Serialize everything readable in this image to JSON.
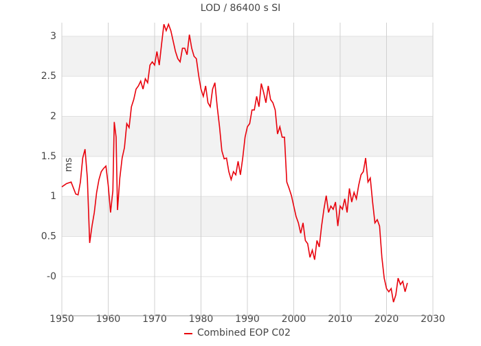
{
  "chart_data": {
    "type": "line",
    "title": "LOD / 86400 s SI",
    "ylabel": "ms",
    "x": [
      1950,
      1951,
      1952,
      1953,
      1953.5,
      1954,
      1954.5,
      1955,
      1955.5,
      1956,
      1956.5,
      1957,
      1957.5,
      1958,
      1958.5,
      1959,
      1959.5,
      1960,
      1960.5,
      1961,
      1961.3,
      1961.7,
      1962,
      1962.5,
      1963,
      1963.5,
      1964,
      1964.5,
      1965,
      1965.5,
      1966,
      1966.5,
      1967,
      1967.5,
      1968,
      1968.5,
      1969,
      1969.5,
      1970,
      1970.5,
      1971,
      1971.5,
      1972,
      1972.5,
      1973,
      1973.5,
      1974,
      1974.5,
      1975,
      1975.5,
      1976,
      1976.5,
      1977,
      1977.5,
      1978,
      1978.5,
      1979,
      1979.5,
      1980,
      1980.5,
      1981,
      1981.5,
      1982,
      1982.5,
      1983,
      1983.5,
      1984,
      1984.5,
      1985,
      1985.5,
      1986,
      1986.5,
      1987,
      1987.5,
      1988,
      1988.5,
      1989,
      1989.5,
      1990,
      1990.5,
      1991,
      1991.5,
      1992,
      1992.5,
      1993,
      1993.5,
      1994,
      1994.5,
      1995,
      1995.5,
      1996,
      1996.5,
      1997,
      1997.5,
      1998,
      1998.5,
      1999,
      1999.5,
      2000,
      2000.5,
      2001,
      2001.5,
      2002,
      2002.5,
      2003,
      2003.5,
      2004,
      2004.5,
      2005,
      2005.5,
      2006,
      2006.5,
      2007,
      2007.5,
      2008,
      2008.5,
      2009,
      2009.5,
      2010,
      2010.5,
      2011,
      2011.5,
      2012,
      2012.5,
      2013,
      2013.5,
      2014,
      2014.5,
      2015,
      2015.5,
      2016,
      2016.5,
      2017,
      2017.5,
      2018,
      2018.5,
      2019,
      2019.5,
      2020,
      2020.5,
      2021,
      2021.5,
      2022,
      2022.5,
      2023,
      2023.5,
      2024,
      2024.5
    ],
    "series": [
      {
        "name": "Combined EOP C02",
        "color": "#e8000b",
        "values": [
          1.12,
          1.16,
          1.18,
          1.03,
          1.02,
          1.18,
          1.48,
          1.59,
          1.23,
          0.42,
          0.63,
          0.8,
          1.05,
          1.21,
          1.31,
          1.35,
          1.38,
          1.14,
          0.8,
          1.07,
          1.93,
          1.74,
          0.83,
          1.23,
          1.48,
          1.61,
          1.91,
          1.86,
          2.12,
          2.21,
          2.34,
          2.38,
          2.44,
          2.34,
          2.47,
          2.42,
          2.64,
          2.68,
          2.64,
          2.81,
          2.64,
          2.9,
          3.15,
          3.07,
          3.15,
          3.07,
          2.94,
          2.81,
          2.72,
          2.68,
          2.85,
          2.85,
          2.77,
          3.02,
          2.85,
          2.75,
          2.72,
          2.51,
          2.34,
          2.25,
          2.38,
          2.17,
          2.12,
          2.34,
          2.42,
          2.12,
          1.87,
          1.57,
          1.47,
          1.48,
          1.31,
          1.21,
          1.31,
          1.27,
          1.44,
          1.27,
          1.48,
          1.74,
          1.87,
          1.91,
          2.08,
          2.08,
          2.25,
          2.12,
          2.41,
          2.3,
          2.17,
          2.38,
          2.21,
          2.17,
          2.08,
          1.78,
          1.87,
          1.74,
          1.74,
          1.18,
          1.1,
          1.01,
          0.88,
          0.75,
          0.67,
          0.54,
          0.67,
          0.45,
          0.41,
          0.24,
          0.33,
          0.21,
          0.45,
          0.37,
          0.63,
          0.84,
          1.01,
          0.8,
          0.88,
          0.84,
          0.93,
          0.63,
          0.88,
          0.84,
          0.97,
          0.8,
          1.1,
          0.93,
          1.05,
          0.97,
          1.14,
          1.27,
          1.31,
          1.48,
          1.18,
          1.23,
          0.93,
          0.67,
          0.71,
          0.63,
          0.24,
          -0.02,
          -0.15,
          -0.19,
          -0.15,
          -0.32,
          -0.23,
          -0.02,
          -0.1,
          -0.06,
          -0.19,
          -0.08
        ]
      }
    ],
    "xlim": [
      1950,
      2030
    ],
    "xticks": [
      1950,
      1960,
      1970,
      1980,
      1990,
      2000,
      2010,
      2020,
      2030
    ],
    "ylim": [
      -0.49,
      3.17
    ],
    "yticks": [
      {
        "value": 0,
        "label": "-0"
      },
      0.5,
      1,
      1.5,
      2,
      2.5,
      3
    ],
    "grid": true
  }
}
